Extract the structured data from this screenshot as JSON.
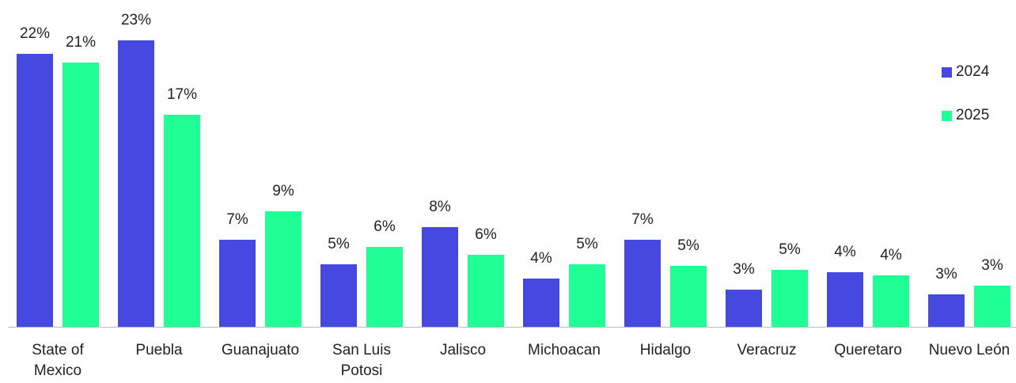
{
  "chart_data": {
    "type": "bar",
    "categories": [
      "State of Mexico",
      "Puebla",
      "Guanajuato",
      "San Luis Potosi",
      "Jalisco",
      "Michoacan",
      "Hidalgo",
      "Veracruz",
      "Queretaro",
      "Nuevo León"
    ],
    "series": [
      {
        "name": "2024",
        "color": "#4549e0",
        "values": [
          21.9,
          23,
          7.0,
          5.0,
          8.0,
          3.9,
          7.0,
          3.0,
          4.4,
          2.6
        ],
        "value_labels": [
          "22%",
          "23%",
          "7%",
          "5%",
          "8%",
          "4%",
          "7%",
          "3%",
          "4%",
          "3%"
        ]
      },
      {
        "name": "2025",
        "color": "#1fff96",
        "values": [
          21.2,
          17.0,
          9.3,
          6.4,
          5.8,
          5.0,
          4.9,
          4.6,
          4.1,
          3.3
        ],
        "value_labels": [
          "21%",
          "17%",
          "9%",
          "6%",
          "6%",
          "5%",
          "5%",
          "5%",
          "4%",
          "3%"
        ]
      }
    ],
    "legend": "right"
  }
}
